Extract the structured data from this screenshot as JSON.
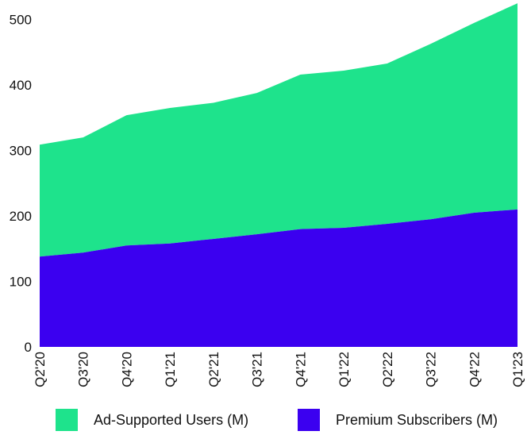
{
  "chart_data": {
    "type": "area",
    "stacked": true,
    "title": "",
    "xlabel": "",
    "ylabel": "",
    "ylim": [
      0,
      530
    ],
    "yticks": [
      0,
      100,
      200,
      300,
      400,
      500
    ],
    "grid": false,
    "legend_position": "bottom",
    "categories": [
      "Q2'20",
      "Q3'20",
      "Q4'20",
      "Q1'21",
      "Q2'21",
      "Q3'21",
      "Q4'21",
      "Q1'22",
      "Q2'22",
      "Q3'22",
      "Q4'22",
      "Q1'23"
    ],
    "series": [
      {
        "name": "Premium Subscribers (M)",
        "color": "#3b00f0",
        "values": [
          138,
          144,
          155,
          158,
          165,
          172,
          180,
          182,
          188,
          195,
          205,
          210
        ]
      },
      {
        "name": "Ad-Supported Users (M)",
        "color": "#1ee38c",
        "values": [
          171,
          176,
          199,
          207,
          208,
          216,
          236,
          240,
          245,
          268,
          290,
          315
        ]
      }
    ],
    "legend_order": [
      "Ad-Supported Users (M)",
      "Premium Subscribers (M)"
    ]
  }
}
